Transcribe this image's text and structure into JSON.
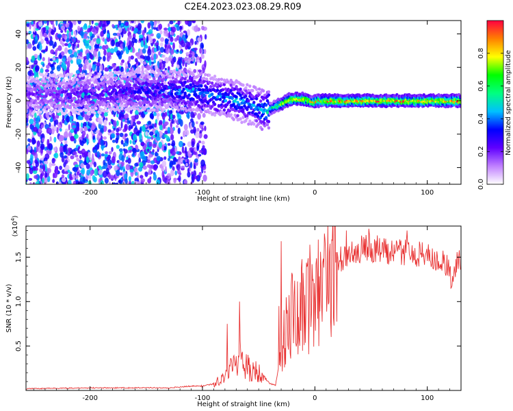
{
  "title": "C2E4.2023.023.08.29.R09",
  "chart_data": [
    {
      "type": "heatmap",
      "xlabel": "Height of straight line (km)",
      "ylabel": "Frequency (Hz)",
      "xlim": [
        -257,
        130
      ],
      "ylim": [
        -50,
        48
      ],
      "xticks": [
        -200,
        -100,
        0,
        100
      ],
      "yticks": [
        -40,
        -20,
        0,
        20,
        40
      ],
      "colorbar": {
        "label": "Normalized spectral amplitude",
        "range": [
          0,
          1
        ],
        "ticks": [
          "0.0",
          "0.2",
          "0.4",
          "0.6",
          "0.8"
        ],
        "colors": [
          "#ffffff",
          "#c080ff",
          "#6000ff",
          "#0000ff",
          "#00c0ff",
          "#00ff80",
          "#00ff00",
          "#ffff00",
          "#ff8000",
          "#ff0040"
        ]
      },
      "ridge": {
        "x": [
          -257,
          -200,
          -160,
          -130,
          -110,
          -90,
          -70,
          -55,
          -45,
          -38,
          -30,
          -22,
          -15,
          -8,
          -2,
          2,
          10,
          40,
          80,
          130
        ],
        "y": [
          4,
          4,
          6,
          6,
          6,
          3,
          0,
          -3,
          -6,
          -4,
          -2,
          1,
          1,
          1,
          -1,
          0,
          0,
          0,
          0,
          0
        ],
        "amplitude": [
          0.2,
          0.25,
          0.3,
          0.35,
          0.45,
          0.4,
          0.45,
          0.4,
          0.5,
          0.6,
          0.75,
          0.85,
          0.9,
          0.9,
          0.8,
          0.85,
          0.9,
          0.9,
          0.9,
          0.9
        ]
      }
    },
    {
      "type": "line",
      "xlabel": "Height of straight line (km)",
      "ylabel": "SNR (10 * v/v)",
      "yscale_label": "(x10",
      "yscale_exp": "4",
      "xlim": [
        -257,
        130
      ],
      "ylim": [
        0,
        1.85
      ],
      "xticks": [
        -200,
        -100,
        0,
        100
      ],
      "yticks": [
        0.5,
        1.0,
        1.5
      ],
      "ytick_labels": [
        "0.5",
        "1.0",
        "1.5"
      ],
      "color": "#e83030",
      "envelope": {
        "x": [
          -257,
          -200,
          -130,
          -110,
          -100,
          -90,
          -80,
          -72,
          -68,
          -62,
          -55,
          -48,
          -40,
          -35,
          -30,
          -26,
          -22,
          -15,
          -8,
          0,
          10,
          20,
          30,
          40,
          50,
          60,
          70,
          80,
          90,
          100,
          110,
          118,
          122,
          126,
          130
        ],
        "y": [
          0.02,
          0.03,
          0.03,
          0.05,
          0.05,
          0.08,
          0.18,
          0.35,
          0.45,
          0.3,
          0.25,
          0.2,
          0.08,
          0.06,
          0.45,
          0.75,
          0.9,
          1.0,
          1.1,
          1.2,
          1.35,
          1.48,
          1.58,
          1.62,
          1.64,
          1.6,
          1.6,
          1.58,
          1.55,
          1.55,
          1.5,
          1.42,
          1.25,
          1.45,
          1.5
        ]
      },
      "peaks": [
        {
          "x": -78,
          "y": 0.75
        },
        {
          "x": -67,
          "y": 1.0
        },
        {
          "x": -30,
          "y": 1.68
        },
        {
          "x": -32,
          "y": 0.95
        },
        {
          "x": -20,
          "y": 1.3
        },
        {
          "x": 28,
          "y": 1.8
        },
        {
          "x": 48,
          "y": 1.82
        },
        {
          "x": 82,
          "y": 1.8
        }
      ]
    }
  ]
}
